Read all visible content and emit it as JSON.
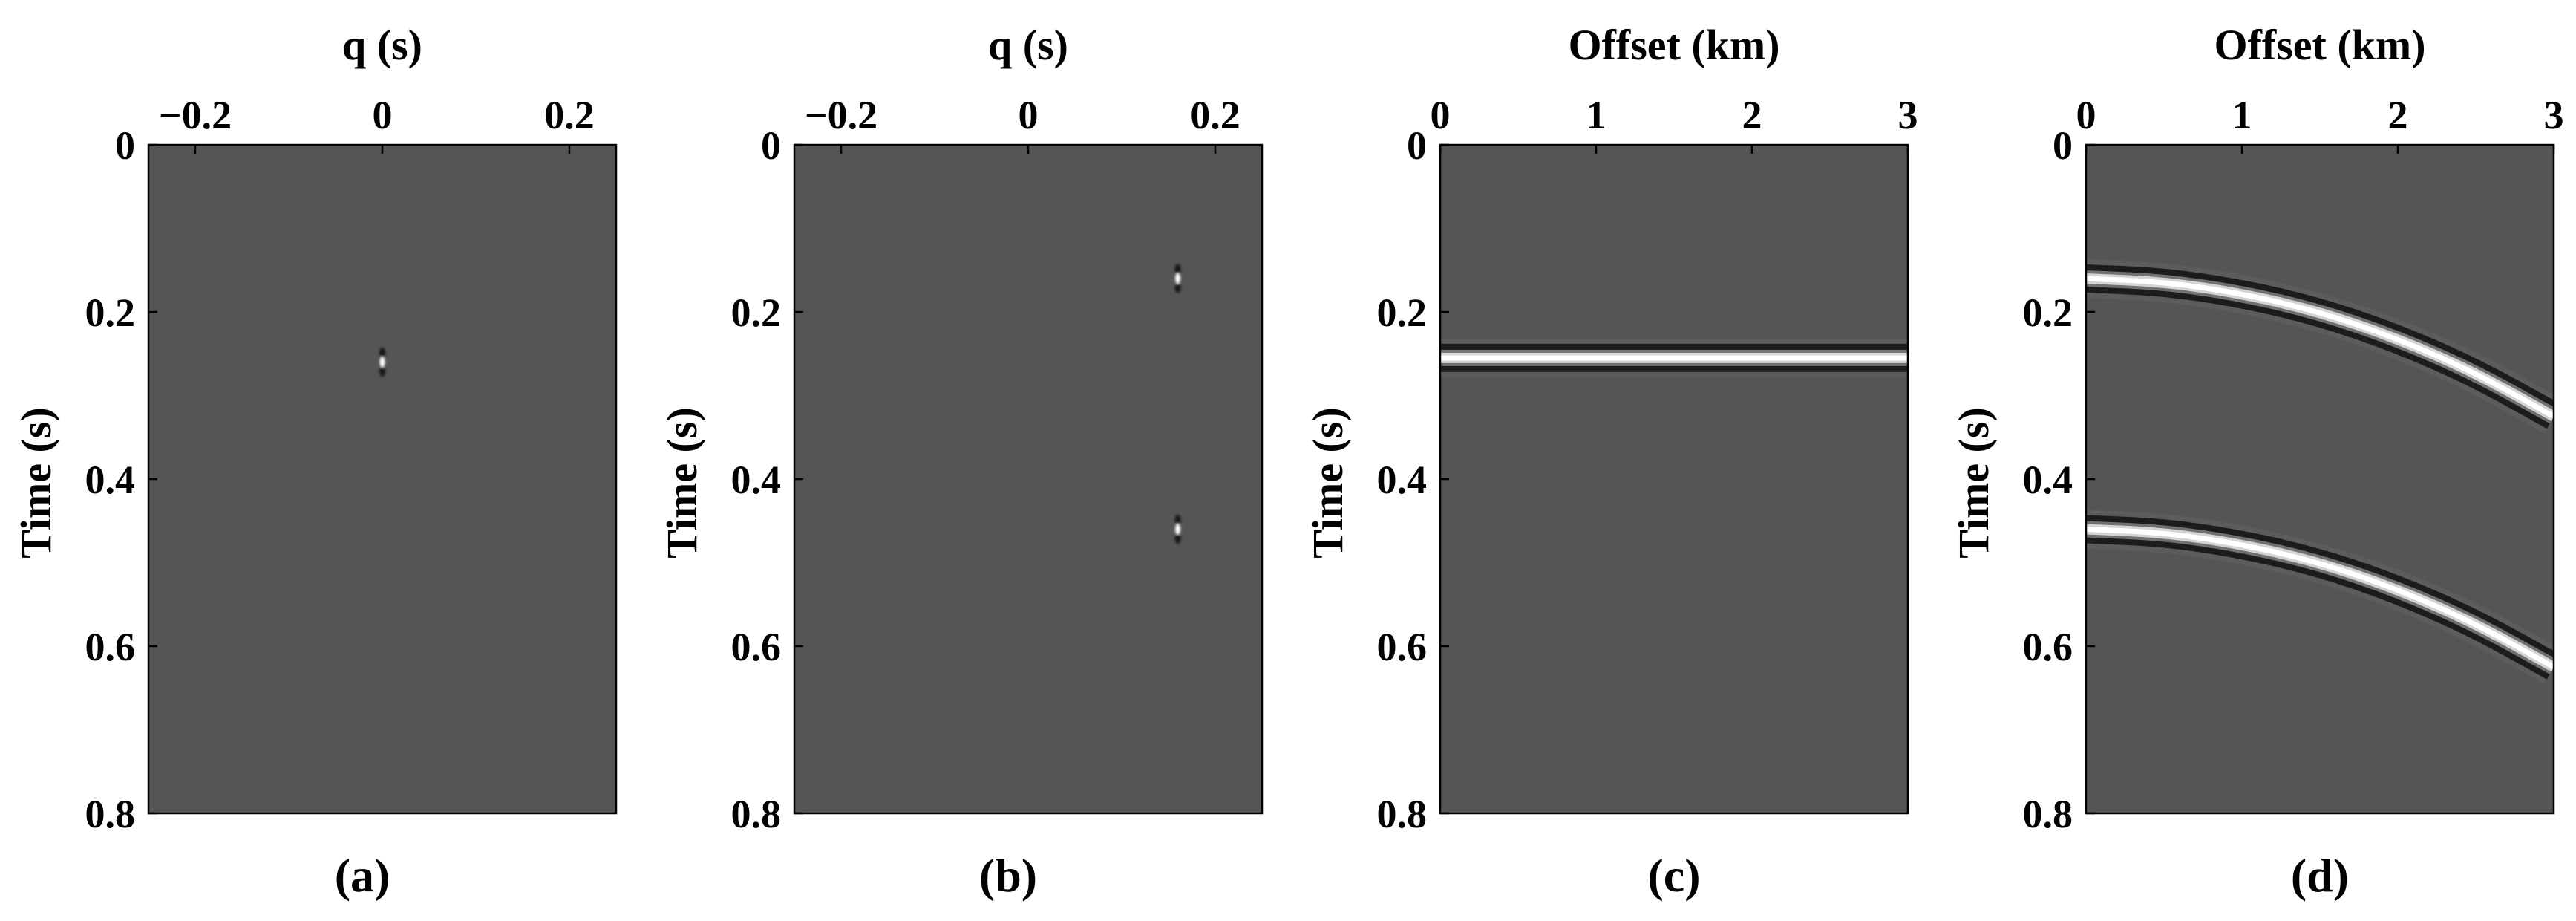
{
  "chart_data": [
    {
      "type": "heatmap",
      "panel": "(a)",
      "xlabel": "q (s)",
      "ylabel": "Time (s)",
      "xlim": [
        -0.25,
        0.25
      ],
      "ylim": [
        0,
        0.8
      ],
      "xticks": [
        -0.2,
        0,
        0.2
      ],
      "xtick_labels": [
        "−0.2",
        "0",
        "0.2"
      ],
      "yticks": [
        0,
        0.2,
        0.4,
        0.6,
        0.8
      ],
      "ytick_labels": [
        "0",
        "0.2",
        "0.4",
        "0.6",
        "0.8"
      ],
      "colormap": "gray",
      "background": "#555555",
      "events": [
        {
          "shape": "point",
          "x": 0.0,
          "y": 0.26
        }
      ],
      "caption": "(a)"
    },
    {
      "type": "heatmap",
      "panel": "(b)",
      "xlabel": "q (s)",
      "ylabel": "Time (s)",
      "xlim": [
        -0.25,
        0.25
      ],
      "ylim": [
        0,
        0.8
      ],
      "xticks": [
        -0.2,
        0,
        0.2
      ],
      "xtick_labels": [
        "−0.2",
        "0",
        "0.2"
      ],
      "yticks": [
        0,
        0.2,
        0.4,
        0.6,
        0.8
      ],
      "ytick_labels": [
        "0",
        "0.2",
        "0.4",
        "0.6",
        "0.8"
      ],
      "colormap": "gray",
      "background": "#555555",
      "events": [
        {
          "shape": "point",
          "x": 0.16,
          "y": 0.16
        },
        {
          "shape": "point",
          "x": 0.16,
          "y": 0.46
        }
      ],
      "caption": "(b)"
    },
    {
      "type": "heatmap",
      "panel": "(c)",
      "xlabel": "Offset (km)",
      "ylabel": "Time (s)",
      "xlim": [
        0,
        3
      ],
      "ylim": [
        0,
        0.8
      ],
      "xticks": [
        0,
        1,
        2,
        3
      ],
      "xtick_labels": [
        "0",
        "1",
        "2",
        "3"
      ],
      "yticks": [
        0,
        0.2,
        0.4,
        0.6,
        0.8
      ],
      "ytick_labels": [
        "0",
        "0.2",
        "0.4",
        "0.6",
        "0.8"
      ],
      "colormap": "gray",
      "background": "#555555",
      "events": [
        {
          "shape": "curve",
          "x": [
            0,
            3
          ],
          "y": [
            0.255,
            0.255
          ]
        }
      ],
      "caption": "(c)"
    },
    {
      "type": "heatmap",
      "panel": "(d)",
      "xlabel": "Offset (km)",
      "ylabel": "Time (s)",
      "xlim": [
        0,
        3
      ],
      "ylim": [
        0,
        0.8
      ],
      "xticks": [
        0,
        1,
        2,
        3
      ],
      "xtick_labels": [
        "0",
        "1",
        "2",
        "3"
      ],
      "yticks": [
        0,
        0.2,
        0.4,
        0.6,
        0.8
      ],
      "ytick_labels": [
        "0",
        "0.2",
        "0.4",
        "0.6",
        "0.8"
      ],
      "colormap": "gray",
      "background": "#555555",
      "events": [
        {
          "shape": "curve",
          "x": [
            0,
            0.5,
            1.0,
            1.5,
            2.0,
            2.5,
            3.0
          ],
          "y": [
            0.16,
            0.164,
            0.178,
            0.2,
            0.232,
            0.273,
            0.325
          ]
        },
        {
          "shape": "curve",
          "x": [
            0,
            0.5,
            1.0,
            1.5,
            2.0,
            2.5,
            3.0
          ],
          "y": [
            0.46,
            0.464,
            0.478,
            0.5,
            0.532,
            0.573,
            0.625
          ]
        }
      ],
      "caption": "(d)"
    }
  ]
}
